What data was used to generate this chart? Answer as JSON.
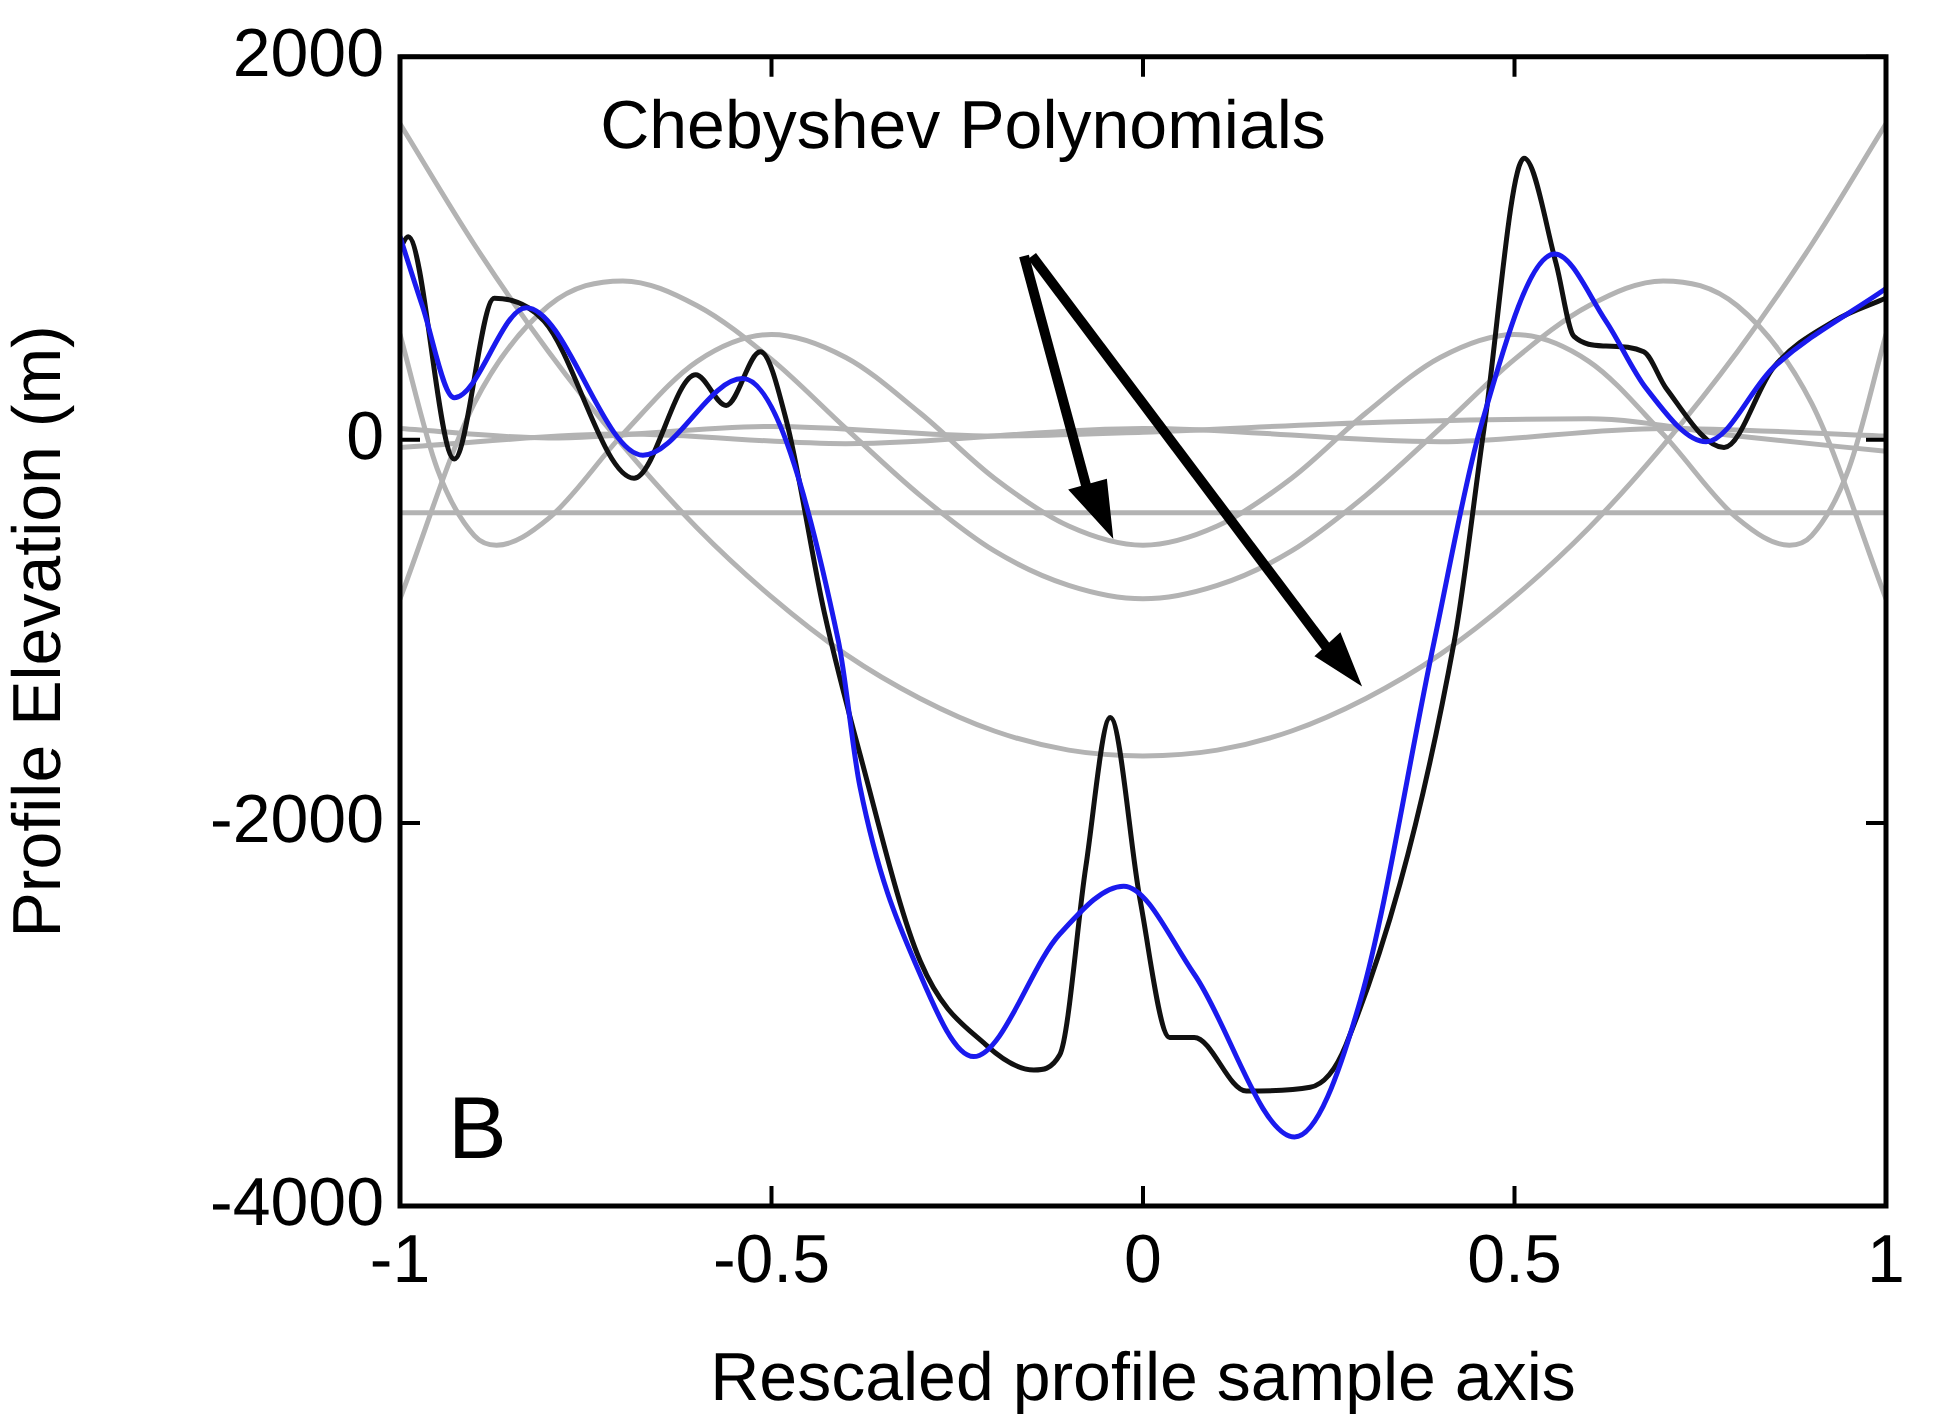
{
  "chart_data": {
    "type": "line",
    "xlabel": "Rescaled profile sample axis",
    "ylabel": "Profile Elevation (m)",
    "xlim": [
      -1,
      1
    ],
    "xticks": [
      -1,
      -0.5,
      0,
      0.5,
      1
    ],
    "ylim": [
      -4000,
      2000
    ],
    "yticks": [
      -4000,
      -2000,
      0,
      2000
    ],
    "grid": false,
    "legend": false,
    "marker": "none",
    "line_style": "solid",
    "annotations": [
      "Chebyshev Polynomials",
      "B"
    ],
    "series": [
      {
        "color": "#b3b3b3",
        "x": [
          -1,
          1
        ],
        "values": [
          -380,
          -380
        ]
      },
      {
        "color": "#b3b3b3",
        "x": [
          -1,
          -0.9,
          -0.8,
          -0.7,
          -0.6,
          -0.5,
          -0.4,
          -0.3,
          -0.2,
          -0.1,
          0,
          0.1,
          0.2,
          0.3,
          0.4,
          0.5,
          0.6,
          0.7,
          0.8,
          0.9,
          1
        ],
        "values": [
          1650,
          1020,
          460,
          -30,
          -460,
          -820,
          -1120,
          -1350,
          -1520,
          -1620,
          -1650,
          -1620,
          -1520,
          -1350,
          -1120,
          -820,
          -460,
          -30,
          460,
          1020,
          1650
        ]
      },
      {
        "color": "#b3b3b3",
        "x": [
          -1,
          -0.9,
          -0.8,
          -0.7,
          -0.6,
          -0.5,
          -0.4,
          -0.3,
          -0.2,
          -0.1,
          0,
          0.1,
          0.2,
          0.3,
          0.4,
          0.5,
          0.6,
          0.7,
          0.8,
          0.9,
          1
        ],
        "values": [
          -830,
          190,
          700,
          830,
          700,
          420,
          60,
          -290,
          -580,
          -760,
          -830,
          -760,
          -580,
          -290,
          60,
          420,
          700,
          830,
          700,
          190,
          -830
        ]
      },
      {
        "color": "#b3b3b3",
        "x": [
          -1,
          -0.95,
          -0.9,
          -0.87,
          -0.8,
          -0.7,
          -0.6,
          -0.5,
          -0.4,
          -0.3,
          -0.2,
          -0.1,
          0,
          0.1,
          0.2,
          0.3,
          0.4,
          0.5,
          0.6,
          0.7,
          0.8,
          0.87,
          0.9,
          0.95,
          1
        ],
        "values": [
          550,
          -150,
          -500,
          -550,
          -410,
          30,
          410,
          550,
          430,
          140,
          -200,
          -450,
          -550,
          -450,
          -200,
          140,
          430,
          550,
          410,
          30,
          -410,
          -550,
          -500,
          -150,
          550
        ]
      },
      {
        "color": "#b3b3b3",
        "x": [
          -1,
          -0.8,
          -0.5,
          -0.2,
          0,
          0.3,
          0.6,
          0.8,
          1
        ],
        "values": [
          60,
          10,
          70,
          20,
          40,
          90,
          110,
          20,
          -60
        ]
      },
      {
        "color": "#b3b3b3",
        "x": [
          -1,
          -0.7,
          -0.4,
          0,
          0.4,
          0.7,
          1
        ],
        "values": [
          -40,
          30,
          -20,
          60,
          -10,
          60,
          20
        ]
      },
      {
        "color": "#111111",
        "x": [
          -1,
          -0.989,
          -0.927,
          -0.873,
          -0.806,
          -0.685,
          -0.602,
          -0.561,
          -0.515,
          -0.48,
          -0.429,
          -0.381,
          -0.3,
          -0.211,
          -0.147,
          -0.112,
          -0.077,
          -0.044,
          -0.004,
          0.036,
          0.069,
          0.139,
          0.225,
          0.273,
          0.419,
          0.459,
          0.513,
          0.556,
          0.58,
          0.623,
          0.674,
          0.704,
          0.782,
          0.849,
          0.93,
          1
        ],
        "values": [
          1000,
          1060,
          -100,
          740,
          620,
          -200,
          340,
          180,
          460,
          100,
          -900,
          -1640,
          -2720,
          -3160,
          -3290,
          -3210,
          -2230,
          -1450,
          -2400,
          -3120,
          -3120,
          -3400,
          -3380,
          -3160,
          -1050,
          60,
          1470,
          920,
          540,
          490,
          460,
          270,
          -40,
          380,
          620,
          740
        ]
      },
      {
        "color": "#1a1aee",
        "x": [
          -1,
          -0.97,
          -0.927,
          -0.83,
          -0.673,
          -0.539,
          -0.41,
          -0.381,
          -0.3,
          -0.228,
          -0.112,
          -0.026,
          0.069,
          0.204,
          0.293,
          0.392,
          0.454,
          0.554,
          0.623,
          0.677,
          0.758,
          0.849,
          1
        ],
        "values": [
          1060,
          700,
          220,
          690,
          -80,
          320,
          -1050,
          -1810,
          -2790,
          -3220,
          -2580,
          -2330,
          -2790,
          -3640,
          -2920,
          -1050,
          60,
          970,
          620,
          270,
          -10,
          380,
          790
        ]
      }
    ]
  }
}
